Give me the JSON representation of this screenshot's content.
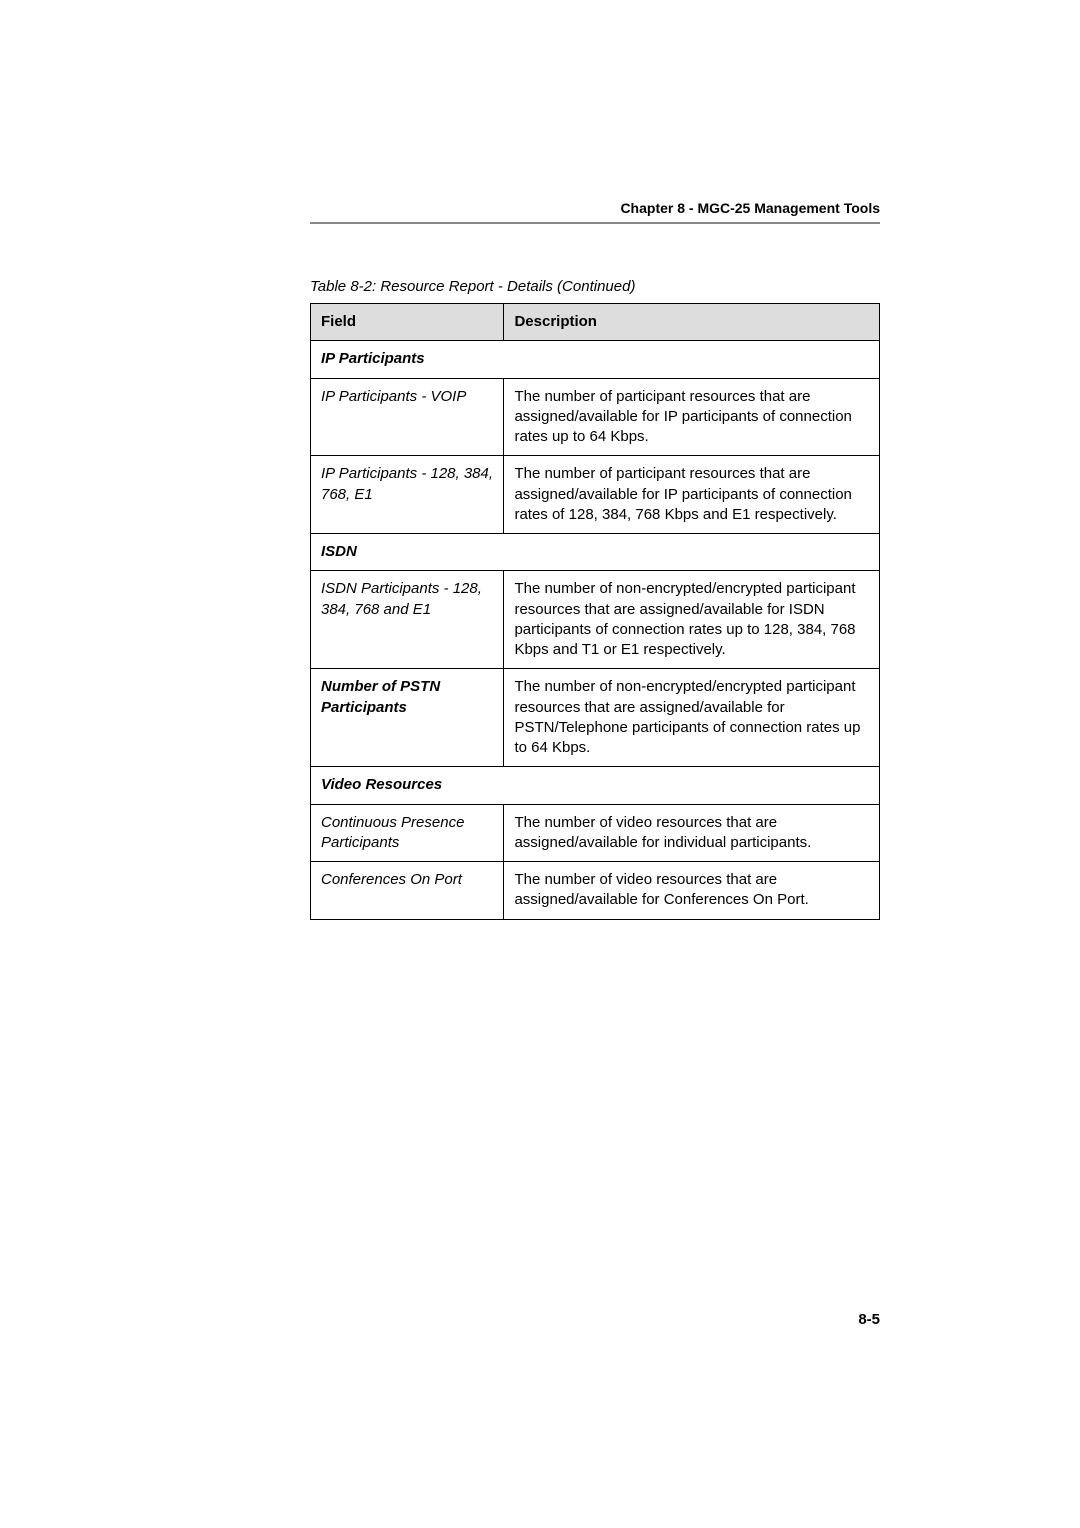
{
  "chapter_header": "Chapter 8 - MGC-25 Management Tools",
  "table_caption": "Table 8-2: Resource Report - Details (Continued)",
  "columns": {
    "field": "Field",
    "description": "Description"
  },
  "sections": [
    {
      "title": "IP Participants",
      "rows": [
        {
          "field": "IP Participants - VOIP",
          "bold": false,
          "desc": "The number of participant resources that are assigned/available for IP participants of connection rates up to 64 Kbps."
        },
        {
          "field": "IP Participants - 128, 384, 768, E1",
          "bold": false,
          "desc": "The number of participant resources that are assigned/available for IP participants of connection rates of 128, 384, 768 Kbps and E1 respectively."
        }
      ]
    },
    {
      "title": "ISDN",
      "rows": [
        {
          "field": "ISDN Participants - 128, 384, 768 and E1",
          "bold": false,
          "desc": "The number of non-encrypted/encrypted participant resources that are assigned/available for ISDN participants of connection rates up to 128, 384, 768 Kbps and T1 or E1 respectively."
        },
        {
          "field": "Number of PSTN Participants",
          "bold": true,
          "desc": "The number of non-encrypted/encrypted participant resources that are assigned/available for PSTN/Telephone participants of connection rates up to 64 Kbps."
        }
      ]
    },
    {
      "title": "Video Resources",
      "rows": [
        {
          "field": "Continuous Presence Participants",
          "bold": false,
          "desc": "The number of video resources that are assigned/available for individual participants."
        },
        {
          "field": "Conferences On Port",
          "bold": false,
          "desc": "The number of video resources that are assigned/available for Conferences On Port."
        }
      ]
    }
  ],
  "page_number": "8-5"
}
